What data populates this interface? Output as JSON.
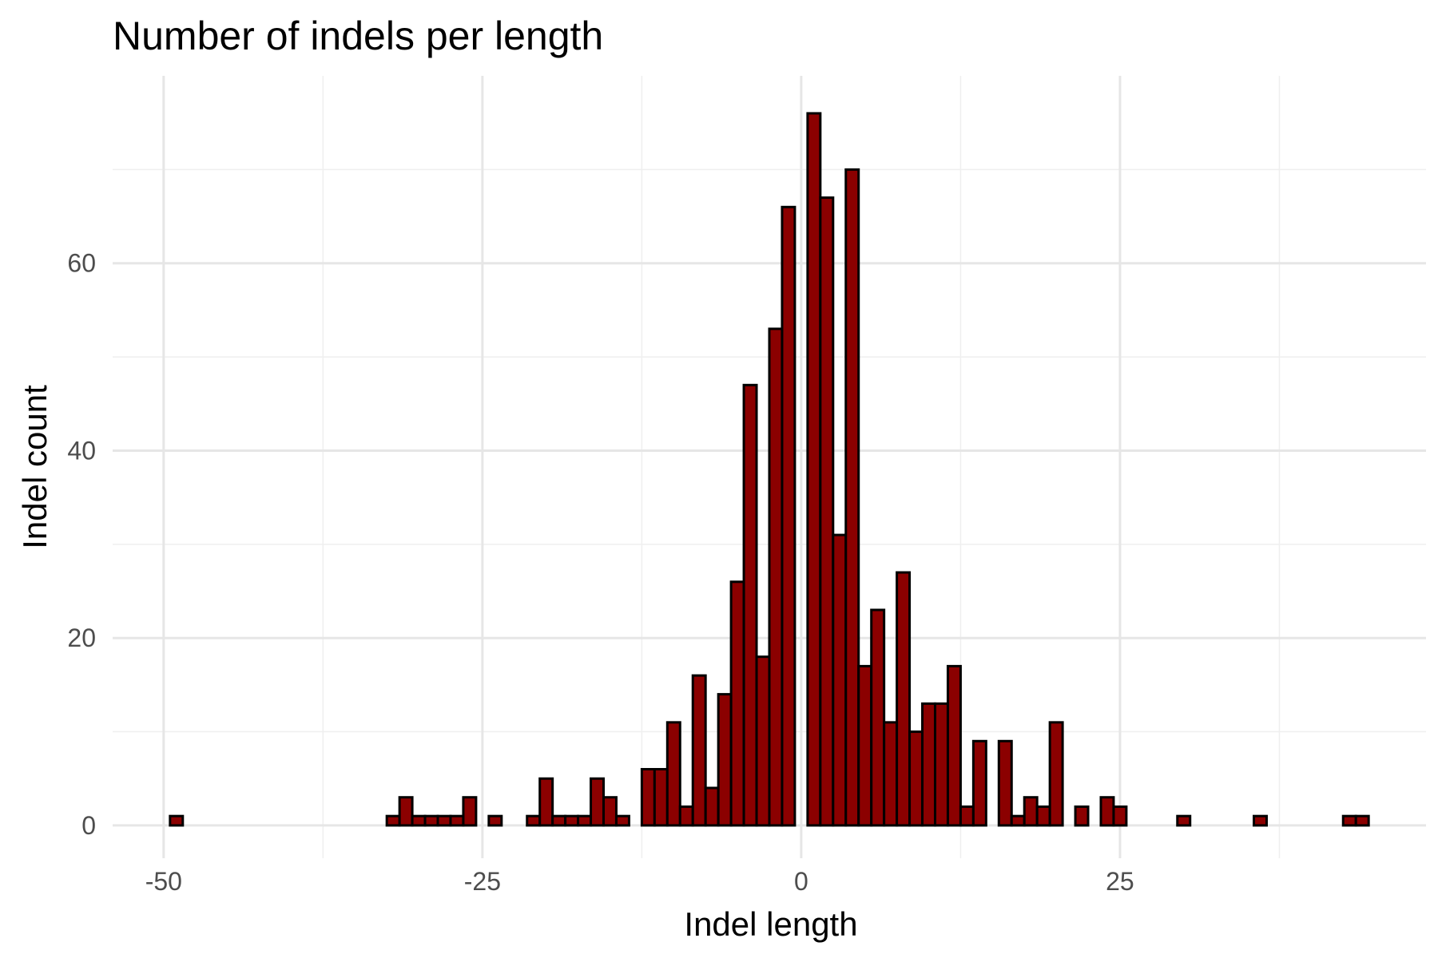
{
  "chart_data": {
    "type": "bar",
    "title": "Number of indels per length",
    "xlabel": "Indel length",
    "ylabel": "Indel count",
    "xlim": [
      -54.0,
      49.0
    ],
    "ylim": [
      -3.5,
      80.0
    ],
    "x_ticks": [
      -50,
      -25,
      0,
      25
    ],
    "x_tick_labels": [
      "-50",
      "-25",
      "0",
      "25"
    ],
    "x_minor_ticks": [
      -37.5,
      -12.5,
      12.5,
      37.5
    ],
    "y_ticks": [
      0,
      20,
      40,
      60
    ],
    "y_tick_labels": [
      "0",
      "20",
      "40",
      "60"
    ],
    "y_minor_ticks": [
      10,
      30,
      50,
      70
    ],
    "grid": true,
    "bin_width": 1,
    "bar_color": "#8b0000",
    "bar_edge_color": "#000000",
    "x": [
      -49,
      -32,
      -31,
      -30,
      -29,
      -28,
      -27,
      -26,
      -24,
      -21,
      -20,
      -19,
      -18,
      -17,
      -16,
      -15,
      -14,
      -12,
      -11,
      -10,
      -9,
      -8,
      -7,
      -6,
      -5,
      -4,
      -3,
      -2,
      -1,
      1,
      2,
      3,
      4,
      5,
      6,
      7,
      8,
      9,
      10,
      11,
      12,
      13,
      14,
      16,
      17,
      18,
      19,
      20,
      22,
      24,
      25,
      30,
      36,
      43,
      44
    ],
    "values": [
      1,
      1,
      3,
      1,
      1,
      1,
      1,
      3,
      1,
      1,
      5,
      1,
      1,
      1,
      5,
      3,
      1,
      6,
      6,
      11,
      2,
      16,
      4,
      14,
      26,
      47,
      18,
      53,
      66,
      76,
      67,
      31,
      70,
      17,
      23,
      11,
      27,
      10,
      13,
      13,
      17,
      2,
      9,
      9,
      1,
      3,
      2,
      11,
      2,
      3,
      2,
      1,
      1,
      1,
      1
    ]
  }
}
